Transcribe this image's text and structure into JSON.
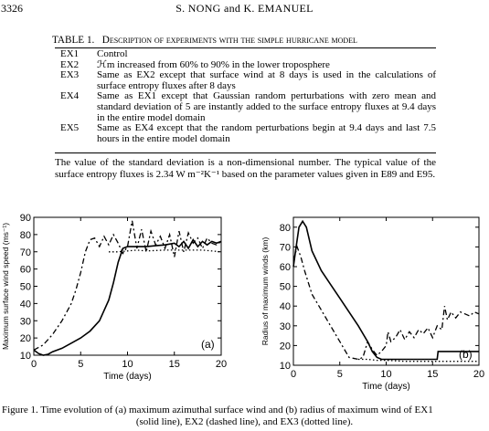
{
  "header": {
    "page_number": "3326",
    "authors": "S. NONG and K. EMANUEL"
  },
  "table": {
    "label": "TABLE 1.",
    "caption": "Description of experiments with the simple hurricane model",
    "rows": [
      {
        "id": "EX1",
        "desc": "Control"
      },
      {
        "id": "EX2",
        "desc": "ℋm increased from 60% to 90% in the lower troposphere"
      },
      {
        "id": "EX3",
        "desc": "Same as EX2 except that surface wind at 8 days is used in the calculations of surface entropy fluxes after 8 days"
      },
      {
        "id": "EX4",
        "desc": "Same as EX1 except that Gaussian random perturbations with zero mean and standard deviation of 5 are instantly added to the surface entropy fluxes at 9.4 days in the entire model domain"
      },
      {
        "id": "EX5",
        "desc": "Same as EX4 except that the random perturbations begin at 9.4 days and last 7.5 hours in the entire model domain"
      }
    ]
  },
  "paragraph": "The value of the standard deviation is a non-dimensional number. The typical value of the surface entropy fluxes is 2.34 W m⁻²K⁻¹ based on the parameter values given in E89 and E95.",
  "chart_data": [
    {
      "type": "line",
      "panel_label": "(a)",
      "xlabel": "Time (days)",
      "ylabel": "Maximum surface wind speed (ms⁻¹)",
      "xlim": [
        0,
        20
      ],
      "ylim": [
        10,
        90
      ],
      "xticks": [
        0,
        5,
        10,
        15,
        20
      ],
      "yticks": [
        10,
        20,
        30,
        40,
        50,
        60,
        70,
        80,
        90
      ],
      "series": [
        {
          "style": "solid",
          "x": [
            0,
            0.5,
            1,
            1.5,
            2,
            3,
            4,
            5,
            6,
            7,
            8,
            8.5,
            9,
            9.5,
            10,
            10.5,
            11,
            12,
            13,
            14,
            15,
            15.5,
            16,
            16.5,
            17,
            17.5,
            18,
            18.5,
            19,
            19.5,
            20
          ],
          "y": [
            13,
            11,
            10,
            10.5,
            12,
            14,
            17,
            20,
            24,
            30,
            42,
            52,
            64,
            72,
            73,
            73,
            73,
            73,
            73.5,
            74,
            75,
            73,
            76,
            72,
            77,
            73,
            76,
            74,
            76,
            75,
            76
          ]
        },
        {
          "style": "dashed",
          "x": [
            0,
            1,
            2,
            3,
            4,
            4.5,
            5,
            5.5,
            6,
            6.5,
            7,
            7.5,
            8,
            8.5,
            9,
            9.5,
            10,
            10.5,
            11,
            11.5,
            12,
            12.5,
            13,
            13.5,
            14,
            14.5,
            15,
            15.5,
            16,
            16.5,
            17,
            17.5,
            18,
            18.5,
            19,
            19.5,
            20
          ],
          "y": [
            13,
            16,
            22,
            30,
            40,
            48,
            58,
            70,
            77,
            78,
            73,
            79,
            74,
            80,
            75,
            69,
            73,
            88,
            72,
            83,
            70,
            82,
            74,
            79,
            72,
            80,
            67,
            82,
            70,
            81,
            75,
            78,
            72,
            78,
            75,
            74,
            76
          ]
        },
        {
          "style": "dotted",
          "x": [
            8,
            9,
            10,
            11,
            12,
            14,
            16,
            18,
            20
          ],
          "y": [
            70,
            70,
            70.5,
            71,
            70.5,
            71,
            71,
            71,
            70
          ]
        }
      ]
    },
    {
      "type": "line",
      "panel_label": "(b)",
      "xlabel": "Time (days)",
      "ylabel": "Radius of maximum winds (km)",
      "xlim": [
        0,
        20
      ],
      "ylim": [
        10,
        85
      ],
      "xticks": [
        0,
        5,
        10,
        15,
        20
      ],
      "yticks": [
        10,
        20,
        30,
        40,
        50,
        60,
        70,
        80
      ],
      "series": [
        {
          "style": "solid",
          "x": [
            0,
            0.3,
            0.6,
            1,
            1.4,
            2,
            3,
            4,
            5,
            6,
            7,
            8,
            8.5,
            9,
            9.5,
            10,
            11,
            12,
            13,
            14,
            15,
            15.5,
            15.6,
            16,
            16.5,
            17,
            18,
            19,
            20
          ],
          "y": [
            60,
            70,
            80,
            83,
            80,
            68,
            58,
            51,
            44,
            37,
            30,
            22,
            17,
            14,
            13,
            13,
            13,
            13,
            13,
            13,
            13,
            13,
            17,
            17,
            17,
            17,
            17,
            17,
            17
          ]
        },
        {
          "style": "dashed",
          "x": [
            0,
            0.4,
            0.8,
            1.2,
            2,
            3,
            4,
            5,
            6,
            7,
            7.5,
            8,
            8.5,
            9,
            9.5,
            10,
            10.2,
            10.5,
            11,
            11.5,
            12,
            12.5,
            13,
            13.5,
            14,
            14.5,
            15,
            15.5,
            16,
            16.3,
            16.6,
            17,
            17.5,
            18,
            18.5,
            19,
            19.5,
            20
          ],
          "y": [
            63,
            70,
            65,
            58,
            46,
            38,
            30,
            22,
            14,
            13,
            14,
            22,
            18,
            15,
            17,
            20,
            27,
            22,
            24,
            28,
            23,
            27,
            24,
            28,
            26,
            29,
            24,
            30,
            28,
            40,
            33,
            37,
            34,
            37,
            36,
            35,
            37,
            36
          ]
        },
        {
          "style": "dotted",
          "x": [
            7,
            8,
            9,
            10,
            12,
            14,
            16,
            18,
            20
          ],
          "y": [
            13,
            13,
            12.5,
            12.5,
            12,
            12,
            12,
            12,
            12
          ]
        }
      ]
    }
  ],
  "figure_caption": {
    "line1": "Figure 1.   Time evolution of (a) maximum azimuthal surface wind and (b) radius of maximum wind of EX1",
    "line2": "(solid line), EX2 (dashed line), and EX3 (dotted line)."
  }
}
